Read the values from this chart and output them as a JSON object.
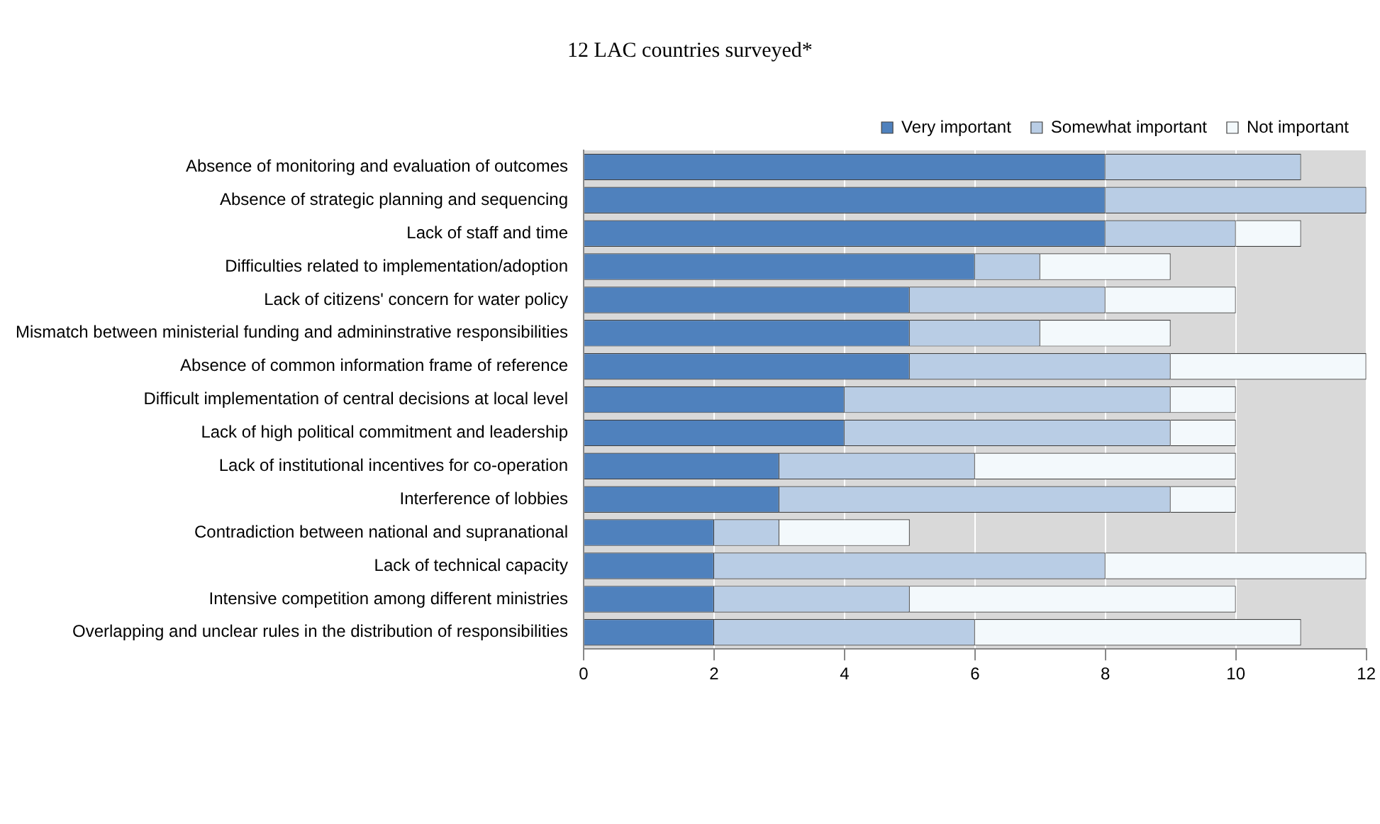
{
  "chart_data": {
    "type": "bar",
    "orientation": "horizontal",
    "stacked": true,
    "title": "12 LAC countries surveyed*",
    "categories": [
      "Absence of monitoring and evaluation of outcomes",
      "Absence of strategic planning and sequencing",
      "Lack of staff and time",
      "Difficulties related to implementation/adoption",
      "Lack of citizens' concern for water policy",
      "Mismatch between ministerial funding and admininstrative responsibilities",
      "Absence of common information frame of reference",
      "Difficult implementation of central decisions at local level",
      "Lack of high political commitment and leadership",
      "Lack of institutional incentives for co-operation",
      "Interference of lobbies",
      "Contradiction between national and supranational",
      "Lack of technical capacity",
      "Intensive competition among different ministries",
      "Overlapping and unclear rules in the distribution of responsibilities"
    ],
    "series": [
      {
        "name": "Very important",
        "color": "#4f81bd",
        "values": [
          8,
          8,
          8,
          6,
          5,
          5,
          5,
          4,
          4,
          3,
          3,
          2,
          2,
          2,
          2
        ]
      },
      {
        "name": "Somewhat important",
        "color": "#b9cde5",
        "values": [
          3,
          4,
          2,
          1,
          3,
          2,
          4,
          5,
          5,
          3,
          6,
          1,
          6,
          3,
          4
        ]
      },
      {
        "name": "Not important",
        "color": "#f3f9fc",
        "values": [
          0,
          0,
          1,
          2,
          2,
          2,
          3,
          1,
          1,
          4,
          1,
          2,
          4,
          5,
          5
        ]
      }
    ],
    "xlim": [
      0,
      12
    ],
    "xticks": [
      0,
      2,
      4,
      6,
      8,
      10,
      12
    ],
    "grid": "x",
    "legend": "top"
  }
}
